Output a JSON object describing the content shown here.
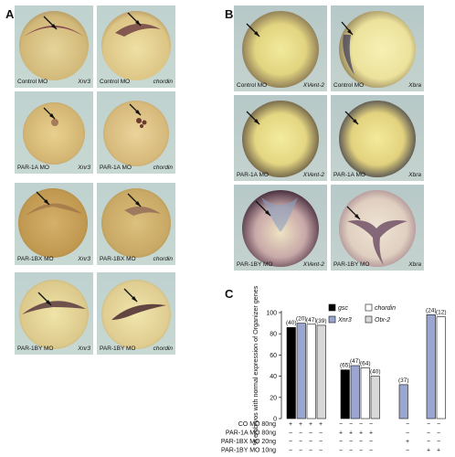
{
  "panels": {
    "A": {
      "letter": "A",
      "tiles": [
        {
          "left": "Control MO",
          "right": "Xnr3"
        },
        {
          "left": "Control MO",
          "right": "chordin"
        },
        {
          "left": "PAR-1A MO",
          "right": "Xnr3"
        },
        {
          "left": "PAR-1A MO",
          "right": "chordin"
        },
        {
          "left": "PAR-1BX MO",
          "right": "Xnr3"
        },
        {
          "left": "PAR-1BX MO",
          "right": "chordin"
        },
        {
          "left": "PAR-1BY MO",
          "right": "Xnr3"
        },
        {
          "left": "PAR-1BY MO",
          "right": "chordin"
        }
      ]
    },
    "B": {
      "letter": "B",
      "tiles": [
        {
          "left": "Control MO",
          "right": "XVent-2"
        },
        {
          "left": "Control MO",
          "right": "Xbra"
        },
        {
          "left": "PAR-1A MO",
          "right": "XVent-2"
        },
        {
          "left": "PAR-1A MO",
          "right": "Xbra"
        },
        {
          "left": "PAR-1BY MO",
          "right": "XVent-2"
        },
        {
          "left": "PAR-1BY MO",
          "right": "Xbra"
        }
      ]
    },
    "C": {
      "letter": "C"
    }
  },
  "chart_data": {
    "type": "bar",
    "ylabel": "% embryos with normal expression of Organizer genes",
    "ylim": [
      0,
      100
    ],
    "yticks": [
      "0",
      "20",
      "40",
      "60",
      "80",
      "100"
    ],
    "legend": [
      {
        "name": "gsc",
        "color": "#000000"
      },
      {
        "name": "Xnr3",
        "color": "#9aa6cf"
      },
      {
        "name": "chordin",
        "color": "#ffffff"
      },
      {
        "name": "Otx-2",
        "color": "#d8d8d8"
      }
    ],
    "groups": [
      {
        "values": [
          86,
          90,
          89,
          88
        ],
        "counts": [
          "(40)",
          "(20)",
          "(47)",
          "(39)"
        ]
      },
      {
        "values": [
          46,
          50,
          48,
          40
        ],
        "counts": [
          "(65)",
          "(47)",
          "(64)",
          "(40)"
        ]
      },
      {
        "values": [
          null,
          32,
          null,
          null
        ],
        "counts": [
          "",
          "(37)",
          "",
          ""
        ]
      },
      {
        "values": [
          null,
          98,
          96,
          null
        ],
        "counts": [
          "",
          "(24)",
          "(12)",
          ""
        ]
      }
    ],
    "conditions": [
      {
        "label": "CO MO 80ng",
        "marks": [
          "+",
          "+",
          "+",
          "+",
          "−",
          "−",
          "−",
          "−",
          "−",
          "−",
          "−"
        ]
      },
      {
        "label": "PAR-1A MO 80ng",
        "marks": [
          "−",
          "−",
          "−",
          "−",
          "+",
          "+",
          "+",
          "+",
          "−",
          "−",
          "−"
        ]
      },
      {
        "label": "PAR-1BX MO 20ng",
        "marks": [
          "−",
          "−",
          "−",
          "−",
          "−",
          "−",
          "−",
          "−",
          "+",
          "−",
          "−"
        ]
      },
      {
        "label": "PAR-1BY MO 10ng",
        "marks": [
          "−",
          "−",
          "−",
          "−",
          "−",
          "−",
          "−",
          "−",
          "−",
          "+",
          "+"
        ]
      }
    ]
  }
}
